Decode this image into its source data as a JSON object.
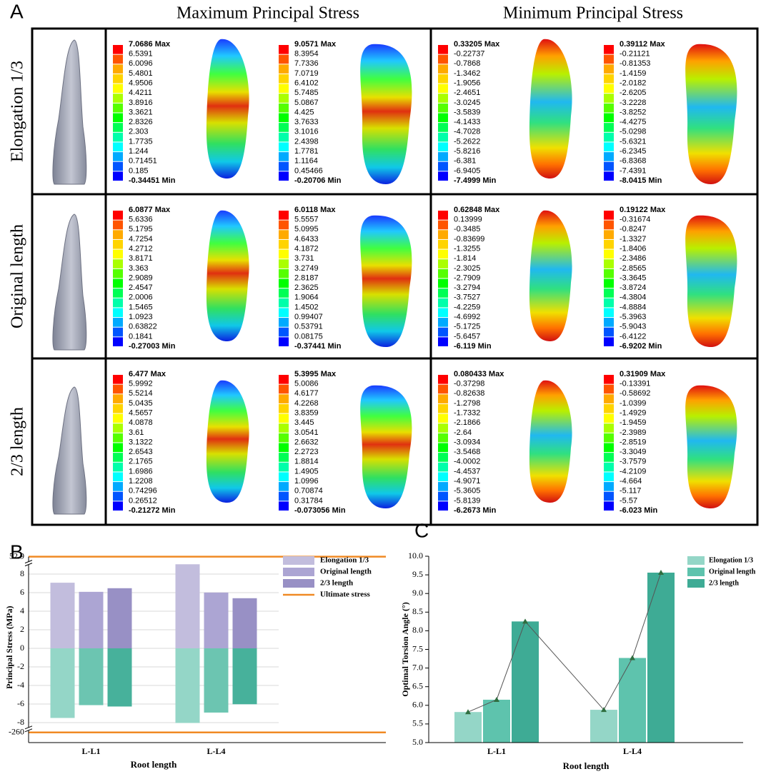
{
  "panel_a": {
    "label": "A",
    "column_headers": [
      "Maximum Principal Stress",
      "Minimum Principal Stress"
    ],
    "palette": [
      "#ff0000",
      "#ff5500",
      "#ffaa00",
      "#ffd400",
      "#ffff00",
      "#aaff00",
      "#55ff00",
      "#00ff00",
      "#00ff55",
      "#00ffaa",
      "#00ffff",
      "#00aaff",
      "#0055ff",
      "#0000ff"
    ],
    "rows": [
      {
        "label": "Elongation 1/3",
        "legends": [
          [
            "7.0686 Max",
            "6.5391",
            "6.0096",
            "5.4801",
            "4.9506",
            "4.4211",
            "3.8916",
            "3.3621",
            "2.8326",
            "2.303",
            "1.7735",
            "1.244",
            "0.71451",
            "0.185",
            "-0.34451 Min"
          ],
          [
            "9.0571 Max",
            "8.3954",
            "7.7336",
            "7.0719",
            "6.4102",
            "5.7485",
            "5.0867",
            "4.425",
            "3.7633",
            "3.1016",
            "2.4398",
            "1.7781",
            "1.1164",
            "0.45466",
            "-0.20706 Min"
          ],
          [
            "0.33205 Max",
            "-0.22737",
            "-0.7868",
            "-1.3462",
            "-1.9056",
            "-2.4651",
            "-3.0245",
            "-3.5839",
            "-4.1433",
            "-4.7028",
            "-5.2622",
            "-5.8216",
            "-6.381",
            "-6.9405",
            "-7.4999 Min"
          ],
          [
            "0.39112 Max",
            "-0.21121",
            "-0.81353",
            "-1.4159",
            "-2.0182",
            "-2.6205",
            "-3.2228",
            "-3.8252",
            "-4.4275",
            "-5.0298",
            "-5.6321",
            "-6.2345",
            "-6.8368",
            "-7.4391",
            "-8.0415 Min"
          ]
        ]
      },
      {
        "label": "Original length",
        "legends": [
          [
            "6.0877 Max",
            "5.6336",
            "5.1795",
            "4.7254",
            "4.2712",
            "3.8171",
            "3.363",
            "2.9089",
            "2.4547",
            "2.0006",
            "1.5465",
            "1.0923",
            "0.63822",
            "0.1841",
            "-0.27003 Min"
          ],
          [
            "6.0118 Max",
            "5.5557",
            "5.0995",
            "4.6433",
            "4.1872",
            "3.731",
            "3.2749",
            "2.8187",
            "2.3625",
            "1.9064",
            "1.4502",
            "0.99407",
            "0.53791",
            "0.08175",
            "-0.37441 Min"
          ],
          [
            "0.62848 Max",
            "0.13999",
            "-0.3485",
            "-0.83699",
            "-1.3255",
            "-1.814",
            "-2.3025",
            "-2.7909",
            "-3.2794",
            "-3.7527",
            "-4.2259",
            "-4.6992",
            "-5.1725",
            "-5.6457",
            "-6.119 Min"
          ],
          [
            "0.19122 Max",
            "-0.31674",
            "-0.8247",
            "-1.3327",
            "-1.8406",
            "-2.3486",
            "-2.8565",
            "-3.3645",
            "-3.8724",
            "-4.3804",
            "-4.8884",
            "-5.3963",
            "-5.9043",
            "-6.4122",
            "-6.9202 Min"
          ]
        ]
      },
      {
        "label": "2/3 length",
        "legends": [
          [
            "6.477 Max",
            "5.9992",
            "5.5214",
            "5.0435",
            "4.5657",
            "4.0878",
            "3.61",
            "3.1322",
            "2.6543",
            "2.1765",
            "1.6986",
            "1.2208",
            "0.74296",
            "0.26512",
            "-0.21272 Min"
          ],
          [
            "5.3995 Max",
            "5.0086",
            "4.6177",
            "4.2268",
            "3.8359",
            "3.445",
            "3.0541",
            "2.6632",
            "2.2723",
            "1.8814",
            "1.4905",
            "1.0996",
            "0.70874",
            "0.31784",
            "-0.073056 Min"
          ],
          [
            "0.080433 Max",
            "-0.37298",
            "-0.82638",
            "-1.2798",
            "-1.7332",
            "-2.1866",
            "-2.64",
            "-3.0934",
            "-3.5468",
            "-4.0002",
            "-4.4537",
            "-4.9071",
            "-5.3605",
            "-5.8139",
            "-6.2673 Min"
          ],
          [
            "0.31909 Max",
            "-0.13391",
            "-0.58692",
            "-1.0399",
            "-1.4929",
            "-1.9459",
            "-2.3989",
            "-2.8519",
            "-3.3049",
            "-3.7579",
            "-4.2109",
            "-4.664",
            "-5.117",
            "-5.57",
            "-6.023 Min"
          ]
        ]
      }
    ]
  },
  "chart_data": [
    {
      "type": "bar",
      "panel": "B",
      "categories": [
        "L-L1",
        "L-L4"
      ],
      "x_label": "Root length",
      "y_label": "Principal Stress (MPa)",
      "series": [
        {
          "name": "Elongation 1/3",
          "color": "#c2bddd",
          "values": [
            7.0686,
            9.0571
          ]
        },
        {
          "name": "Original length",
          "color": "#aca5d3",
          "values": [
            6.0877,
            6.0118
          ]
        },
        {
          "name": "2/3 length",
          "color": "#9890c5",
          "values": [
            6.477,
            5.3995
          ]
        }
      ],
      "negative_series": [
        {
          "color": "#94d6c7",
          "values": [
            -7.4999,
            -8.0415
          ]
        },
        {
          "color": "#6cc5b1",
          "values": [
            -6.119,
            -6.9202
          ]
        },
        {
          "color": "#47b19b",
          "values": [
            -6.2673,
            -6.023
          ]
        }
      ],
      "reference_lines": {
        "name": "Ultimate stress",
        "color": "#f08a24",
        "values": [
          52.9,
          -260
        ]
      },
      "ylim": [
        -8.6,
        8.8
      ],
      "yticks": [
        -8,
        -6,
        -4,
        -2,
        0,
        2,
        4,
        6,
        8
      ],
      "grid": true,
      "axis_break": true
    },
    {
      "type": "bar",
      "panel": "C",
      "categories": [
        "L-L1",
        "L-L4"
      ],
      "x_label": "Root length",
      "y_label": "Optimal Torsion Angle (°)",
      "series": [
        {
          "name": "Elongation 1/3",
          "color": "#94d6c7",
          "values": [
            5.82,
            5.88
          ]
        },
        {
          "name": "Original length",
          "color": "#5ec3ad",
          "values": [
            6.15,
            7.27
          ]
        },
        {
          "name": "2/3 length",
          "color": "#3eab95",
          "values": [
            8.25,
            9.56
          ]
        }
      ],
      "trend_line": {
        "color": "#555555",
        "marker_color": "#2f6e3f"
      },
      "ylim": [
        5,
        10
      ],
      "yticks": [
        {
          "value": 5,
          "label": "5.0"
        },
        5.5,
        {
          "value": 6,
          "label": "6.0"
        },
        6.5,
        {
          "value": 7,
          "label": "7.0"
        },
        7.5,
        {
          "value": 8,
          "label": "8.0"
        },
        8.5,
        {
          "value": 9,
          "label": "9.0"
        },
        9.5,
        {
          "value": 10,
          "label": "10.0"
        }
      ],
      "grid": false
    }
  ]
}
